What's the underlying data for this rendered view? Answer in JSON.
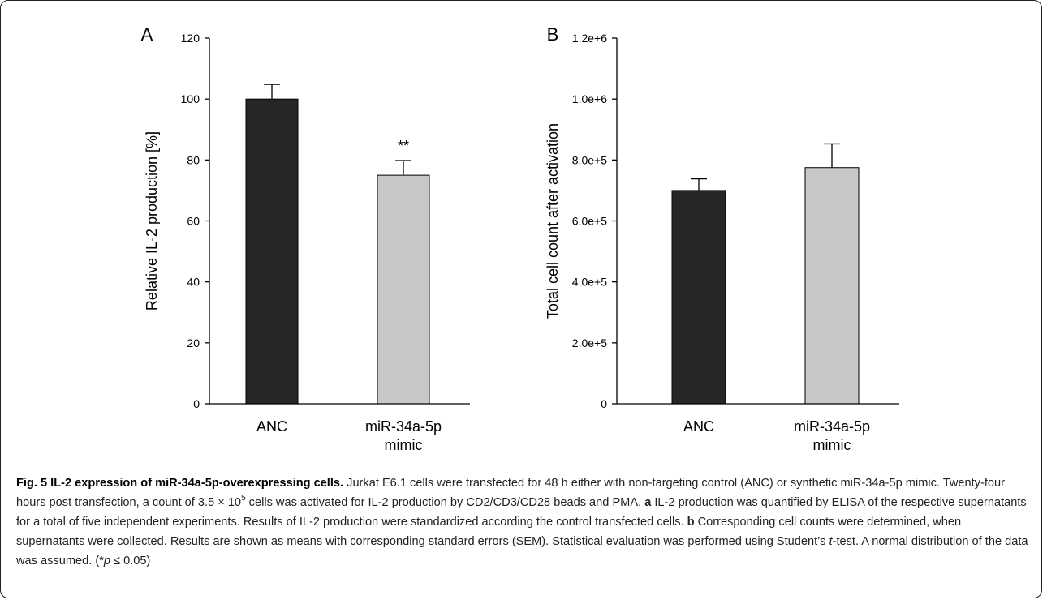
{
  "chart_data": [
    {
      "type": "bar",
      "panel_label": "A",
      "categories": [
        "ANC",
        "miR-34a-5p mimic"
      ],
      "values": [
        100,
        75
      ],
      "errors": [
        4.8,
        4.8
      ],
      "colors": [
        "#262626",
        "#c8c8c8"
      ],
      "ylabel": "Relative IL-2 production [%]",
      "ylim": [
        0,
        120
      ],
      "yticks": [
        0,
        20,
        40,
        60,
        80,
        100,
        120
      ],
      "ytick_labels": [
        "0",
        "20",
        "40",
        "60",
        "80",
        "100",
        "120"
      ],
      "annotations": [
        "",
        "**"
      ],
      "grid": false
    },
    {
      "type": "bar",
      "panel_label": "B",
      "categories": [
        "ANC",
        "miR-34a-5p mimic"
      ],
      "values": [
        700000,
        775000
      ],
      "errors": [
        38000,
        78000
      ],
      "colors": [
        "#262626",
        "#c8c8c8"
      ],
      "ylabel": "Total cell count after activation",
      "ylim": [
        0,
        1200000
      ],
      "yticks": [
        0,
        200000,
        400000,
        600000,
        800000,
        1000000,
        1200000
      ],
      "ytick_labels": [
        "0",
        "2.0e+5",
        "4.0e+5",
        "6.0e+5",
        "8.0e+5",
        "1.0e+6",
        "1.2e+6"
      ],
      "annotations": [
        "",
        ""
      ],
      "grid": false
    }
  ],
  "caption": {
    "title": "Fig. 5 IL-2 expression of miR-34a-5p-overexpressing cells.",
    "t1": " Jurkat E6.1 cells were transfected for 48 h either with non-targeting control (ANC) or synthetic miR-34a-5p mimic. Twenty-four hours post transfection, a count of 3.5 × 10",
    "sup": "5",
    "t2": " cells was activated for IL-2 production by CD2/CD3/CD28 beads and PMA. ",
    "a_label": "a",
    "t3": " IL-2 production was quantified by ELISA of the respective supernatants for a total of five independent experiments. Results of IL-2 production were standardized according the control transfected cells. ",
    "b_label": "b",
    "t4": " Corresponding cell counts were determined, when supernatants were collected. Results are shown as means with corresponding standard errors (SEM). Statistical evaluation was performed using Student’s ",
    "t_italic": "t",
    "t5": "-test. A normal distribution of the data was assumed. (*",
    "p_italic": "p",
    "t6": " ≤ 0.05)"
  }
}
